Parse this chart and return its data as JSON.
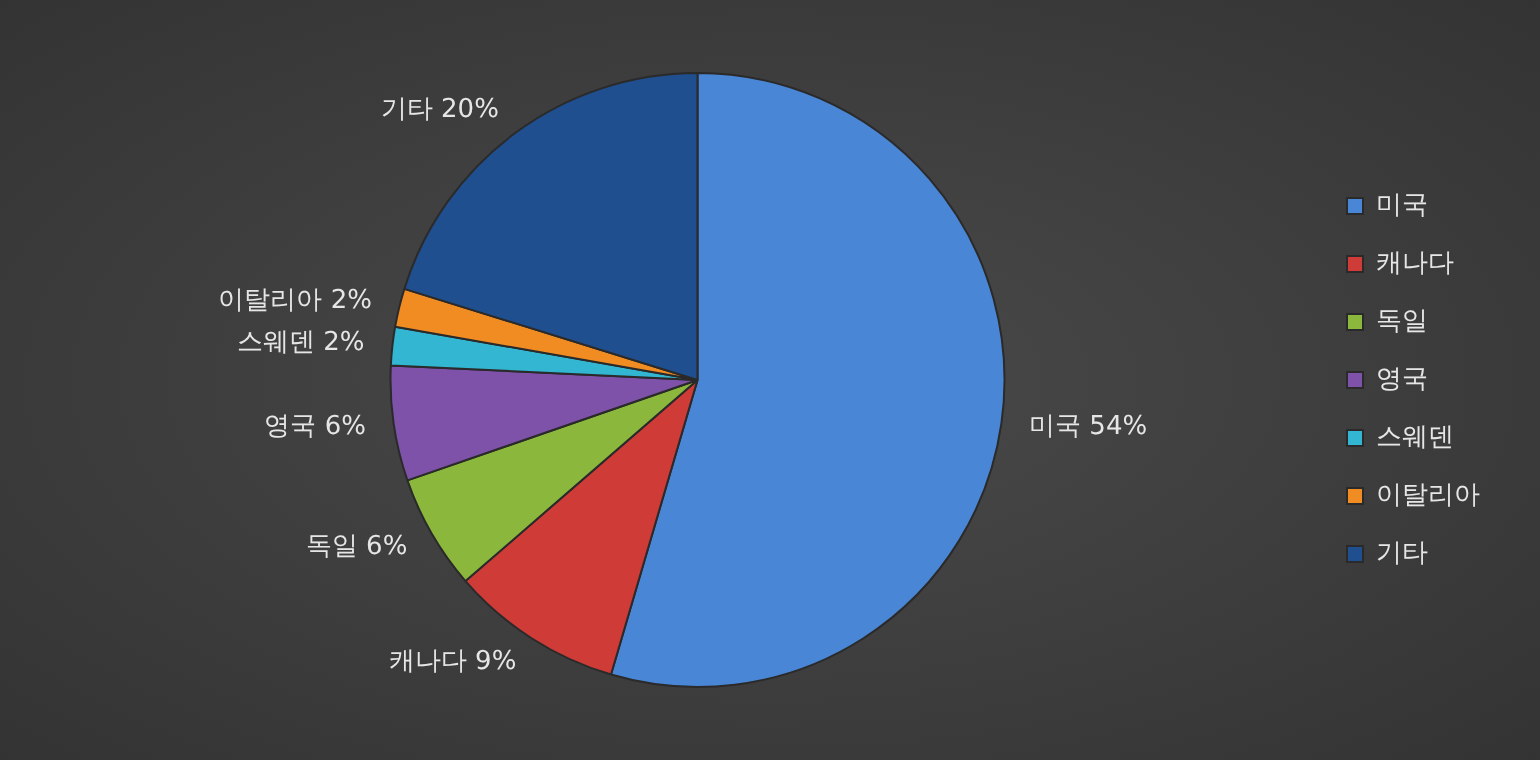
{
  "chart_data": {
    "type": "pie",
    "categories": [
      "미국",
      "캐나다",
      "독일",
      "영국",
      "스웨덴",
      "이탈리아",
      "기타"
    ],
    "values": [
      54,
      9,
      6,
      6,
      2,
      2,
      20
    ],
    "colors": [
      "#4a86d6",
      "#cf3b36",
      "#8bb83c",
      "#7f52aa",
      "#33b6d1",
      "#f08c22",
      "#1f4f8e"
    ],
    "value_labels": [
      "미국 54%",
      "캐나다 9%",
      "독일 6%",
      "영국 6%",
      "스웨덴 2%",
      "이탈리아 2%",
      "기타 20%"
    ],
    "legend": "right"
  }
}
